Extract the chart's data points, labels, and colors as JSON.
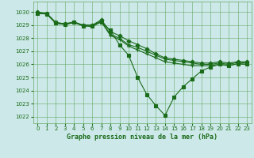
{
  "title": "Graphe pression niveau de la mer (hPa)",
  "background_color": "#cce8e8",
  "grid_color": "#66aa66",
  "line_color": "#1a6b1a",
  "marker_color": "#1a6b1a",
  "xlim": [
    -0.5,
    23.5
  ],
  "ylim": [
    1021.5,
    1030.8
  ],
  "yticks": [
    1022,
    1023,
    1024,
    1025,
    1026,
    1027,
    1028,
    1029,
    1030
  ],
  "xticks": [
    0,
    1,
    2,
    3,
    4,
    5,
    6,
    7,
    8,
    9,
    10,
    11,
    12,
    13,
    14,
    15,
    16,
    17,
    18,
    19,
    20,
    21,
    22,
    23
  ],
  "series": [
    {
      "x": [
        0,
        1,
        2,
        3,
        4,
        5,
        6,
        7,
        8,
        9,
        10,
        11,
        12,
        13,
        14,
        15,
        16,
        17,
        18,
        19,
        20,
        21,
        22,
        23
      ],
      "y": [
        1030.0,
        1029.9,
        1029.2,
        1029.1,
        1029.2,
        1029.0,
        1029.0,
        1029.4,
        1028.5,
        1028.2,
        1027.8,
        1027.5,
        1027.2,
        1026.8,
        1026.5,
        1026.4,
        1026.3,
        1026.2,
        1026.1,
        1026.1,
        1026.2,
        1026.1,
        1026.2,
        1026.2
      ],
      "marker": "D",
      "markersize": 2.5,
      "linewidth": 0.8
    },
    {
      "x": [
        0,
        1,
        2,
        3,
        4,
        5,
        6,
        7,
        8,
        9,
        10,
        11,
        12,
        13,
        14,
        15,
        16,
        17,
        18,
        19,
        20,
        21,
        22,
        23
      ],
      "y": [
        1029.9,
        1029.9,
        1029.2,
        1029.1,
        1029.25,
        1029.0,
        1029.0,
        1029.3,
        1028.3,
        1028.0,
        1027.5,
        1027.3,
        1027.0,
        1026.7,
        1026.4,
        1026.3,
        1026.2,
        1026.1,
        1026.0,
        1026.0,
        1026.1,
        1026.0,
        1026.15,
        1026.1
      ],
      "marker": "x",
      "markersize": 3.5,
      "linewidth": 0.8
    },
    {
      "x": [
        0,
        1,
        2,
        3,
        4,
        5,
        6,
        7,
        8,
        9,
        10,
        11,
        12,
        13,
        14,
        15,
        16,
        17,
        18,
        19,
        20,
        21,
        22,
        23
      ],
      "y": [
        1029.9,
        1029.85,
        1029.15,
        1029.05,
        1029.2,
        1028.95,
        1028.9,
        1029.25,
        1028.2,
        1027.9,
        1027.4,
        1027.1,
        1026.8,
        1026.5,
        1026.2,
        1026.1,
        1026.0,
        1025.9,
        1025.9,
        1025.9,
        1026.0,
        1025.9,
        1026.05,
        1026.0
      ],
      "marker": "+",
      "markersize": 3.5,
      "linewidth": 0.8
    },
    {
      "x": [
        0,
        1,
        2,
        3,
        4,
        5,
        6,
        7,
        8,
        9,
        10,
        11,
        12,
        13,
        14,
        15,
        16,
        17,
        18,
        19,
        20,
        21,
        22,
        23
      ],
      "y": [
        1029.9,
        1029.85,
        1029.15,
        1029.05,
        1029.2,
        1028.95,
        1028.9,
        1029.25,
        1028.6,
        1027.5,
        1026.7,
        1025.0,
        1023.7,
        1022.85,
        1022.1,
        1023.5,
        1024.3,
        1024.9,
        1025.5,
        1025.8,
        1026.0,
        1025.9,
        1026.05,
        1026.0
      ],
      "marker": "s",
      "markersize": 2.5,
      "linewidth": 0.8
    }
  ]
}
